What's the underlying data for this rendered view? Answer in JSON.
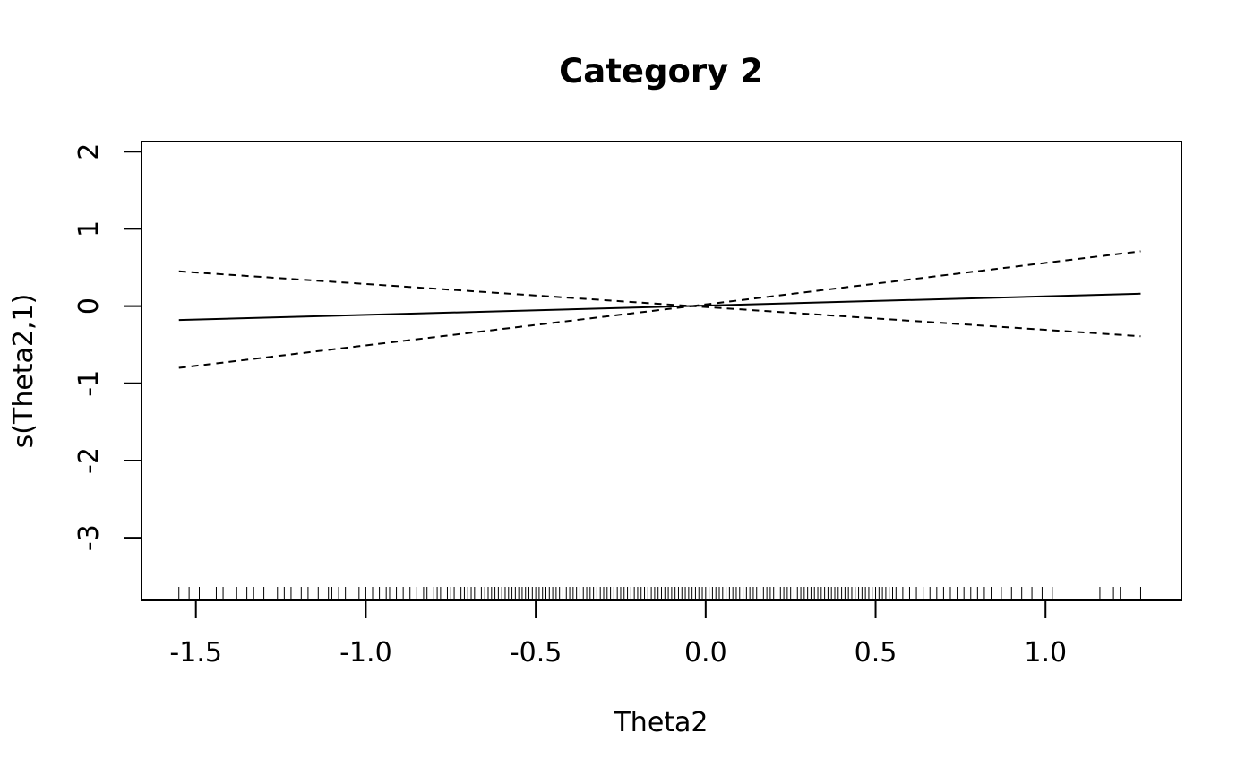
{
  "chart_data": {
    "type": "line",
    "title": "Category 2",
    "xlabel": "Theta2",
    "ylabel": "s(Theta2,1)",
    "xlim": [
      -1.66,
      1.4
    ],
    "ylim": [
      -3.81,
      2.13
    ],
    "x_ticks": [
      -1.5,
      -1.0,
      -0.5,
      0.0,
      0.5,
      1.0
    ],
    "x_tick_labels": [
      "-1.5",
      "-1.0",
      "-0.5",
      "0.0",
      "0.5",
      "1.0"
    ],
    "y_ticks": [
      2,
      1,
      0,
      -1,
      -2,
      -3
    ],
    "y_tick_labels": [
      "2",
      "1",
      "0",
      "-1",
      "-2",
      "-3"
    ],
    "grid": false,
    "legend": "none",
    "series": [
      {
        "role": "fit",
        "style": "solid",
        "x": [
          -1.55,
          1.28
        ],
        "y": [
          -0.18,
          0.16
        ]
      },
      {
        "role": "upper band",
        "style": "dashed",
        "x": [
          -1.55,
          -0.04,
          1.28
        ],
        "y": [
          0.45,
          0.0,
          0.71
        ]
      },
      {
        "role": "lower band",
        "style": "dashed",
        "x": [
          -1.55,
          -0.04,
          1.28
        ],
        "y": [
          -0.8,
          0.0,
          -0.39
        ]
      }
    ],
    "rug": [
      -1.55,
      -1.52,
      -1.49,
      -1.44,
      -1.42,
      -1.38,
      -1.35,
      -1.33,
      -1.3,
      -1.26,
      -1.24,
      -1.22,
      -1.19,
      -1.17,
      -1.14,
      -1.11,
      -1.1,
      -1.08,
      -1.06,
      -1.02,
      -1.0,
      -0.98,
      -0.96,
      -0.94,
      -0.93,
      -0.91,
      -0.89,
      -0.87,
      -0.85,
      -0.83,
      -0.82,
      -0.8,
      -0.79,
      -0.78,
      -0.76,
      -0.75,
      -0.74,
      -0.72,
      -0.71,
      -0.7,
      -0.69,
      -0.68,
      -0.66,
      -0.65,
      -0.64,
      -0.63,
      -0.62,
      -0.61,
      -0.6,
      -0.59,
      -0.58,
      -0.57,
      -0.56,
      -0.55,
      -0.54,
      -0.53,
      -0.52,
      -0.51,
      -0.5,
      -0.49,
      -0.48,
      -0.47,
      -0.46,
      -0.45,
      -0.44,
      -0.43,
      -0.42,
      -0.41,
      -0.4,
      -0.39,
      -0.38,
      -0.37,
      -0.36,
      -0.35,
      -0.34,
      -0.33,
      -0.32,
      -0.31,
      -0.3,
      -0.29,
      -0.28,
      -0.27,
      -0.26,
      -0.25,
      -0.24,
      -0.23,
      -0.22,
      -0.21,
      -0.2,
      -0.19,
      -0.18,
      -0.17,
      -0.16,
      -0.15,
      -0.14,
      -0.13,
      -0.12,
      -0.11,
      -0.1,
      -0.09,
      -0.08,
      -0.07,
      -0.06,
      -0.05,
      -0.04,
      -0.03,
      -0.02,
      -0.01,
      0.0,
      0.01,
      0.02,
      0.03,
      0.04,
      0.05,
      0.06,
      0.07,
      0.08,
      0.09,
      0.1,
      0.11,
      0.12,
      0.13,
      0.14,
      0.15,
      0.16,
      0.17,
      0.18,
      0.19,
      0.2,
      0.21,
      0.22,
      0.23,
      0.24,
      0.25,
      0.26,
      0.27,
      0.28,
      0.29,
      0.3,
      0.31,
      0.32,
      0.33,
      0.34,
      0.35,
      0.36,
      0.37,
      0.38,
      0.39,
      0.4,
      0.41,
      0.42,
      0.43,
      0.44,
      0.45,
      0.46,
      0.47,
      0.48,
      0.49,
      0.5,
      0.51,
      0.52,
      0.53,
      0.54,
      0.55,
      0.56,
      0.58,
      0.6,
      0.62,
      0.64,
      0.66,
      0.68,
      0.7,
      0.72,
      0.74,
      0.76,
      0.78,
      0.8,
      0.82,
      0.84,
      0.87,
      0.9,
      0.93,
      0.96,
      0.99,
      1.02,
      1.16,
      1.2,
      1.22,
      1.28
    ]
  }
}
